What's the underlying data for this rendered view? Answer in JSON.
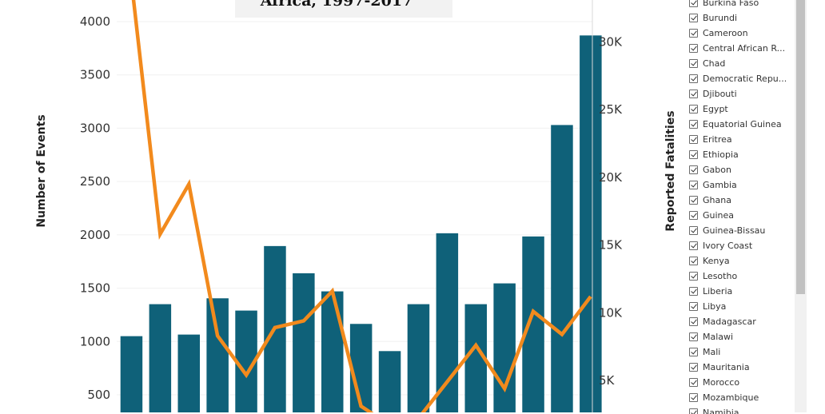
{
  "chart_data": {
    "type": "bar+line",
    "title": "Africa, 1997-2017",
    "left_axis": {
      "label": "Number of Events",
      "ticks": [
        "500",
        "1000",
        "1500",
        "2000",
        "2500",
        "3000",
        "3500",
        "4000"
      ],
      "range": [
        250,
        4200
      ]
    },
    "right_axis": {
      "label": "Reported Fatalities",
      "ticks": [
        "5K",
        "10K",
        "15K",
        "20K",
        "25K",
        "30K"
      ],
      "range": [
        1000,
        34000
      ]
    },
    "series": [
      {
        "kind": "bar",
        "color": "#0f6179",
        "values": [
          1050,
          1350,
          1065,
          1405,
          1290,
          1895,
          1640,
          1470,
          1165,
          910,
          1350,
          2015,
          1350,
          1545,
          1985,
          3030,
          3870
        ]
      },
      {
        "kind": "line",
        "color": "#f28a1d",
        "values": [
          34500,
          15800,
          19500,
          8300,
          5400,
          8900,
          9400,
          11600,
          3100,
          1700,
          2200,
          4900,
          7600,
          4400,
          10100,
          8400,
          11200
        ]
      }
    ]
  },
  "filter": {
    "items": [
      {
        "label": "Burkina Faso",
        "checked": true
      },
      {
        "label": "Burundi",
        "checked": true
      },
      {
        "label": "Cameroon",
        "checked": true
      },
      {
        "label": "Central African R...",
        "checked": true
      },
      {
        "label": "Chad",
        "checked": true
      },
      {
        "label": "Democratic Repu...",
        "checked": true
      },
      {
        "label": "Djibouti",
        "checked": true
      },
      {
        "label": "Egypt",
        "checked": true
      },
      {
        "label": "Equatorial Guinea",
        "checked": true
      },
      {
        "label": "Eritrea",
        "checked": true
      },
      {
        "label": "Ethiopia",
        "checked": true
      },
      {
        "label": "Gabon",
        "checked": true
      },
      {
        "label": "Gambia",
        "checked": true
      },
      {
        "label": "Ghana",
        "checked": true
      },
      {
        "label": "Guinea",
        "checked": true
      },
      {
        "label": "Guinea-Bissau",
        "checked": true
      },
      {
        "label": "Ivory Coast",
        "checked": true
      },
      {
        "label": "Kenya",
        "checked": true
      },
      {
        "label": "Lesotho",
        "checked": true
      },
      {
        "label": "Liberia",
        "checked": true
      },
      {
        "label": "Libya",
        "checked": true
      },
      {
        "label": "Madagascar",
        "checked": true
      },
      {
        "label": "Malawi",
        "checked": true
      },
      {
        "label": "Mali",
        "checked": true
      },
      {
        "label": "Mauritania",
        "checked": true
      },
      {
        "label": "Morocco",
        "checked": true
      },
      {
        "label": "Mozambique",
        "checked": true
      },
      {
        "label": "Namibia",
        "checked": true
      }
    ]
  }
}
